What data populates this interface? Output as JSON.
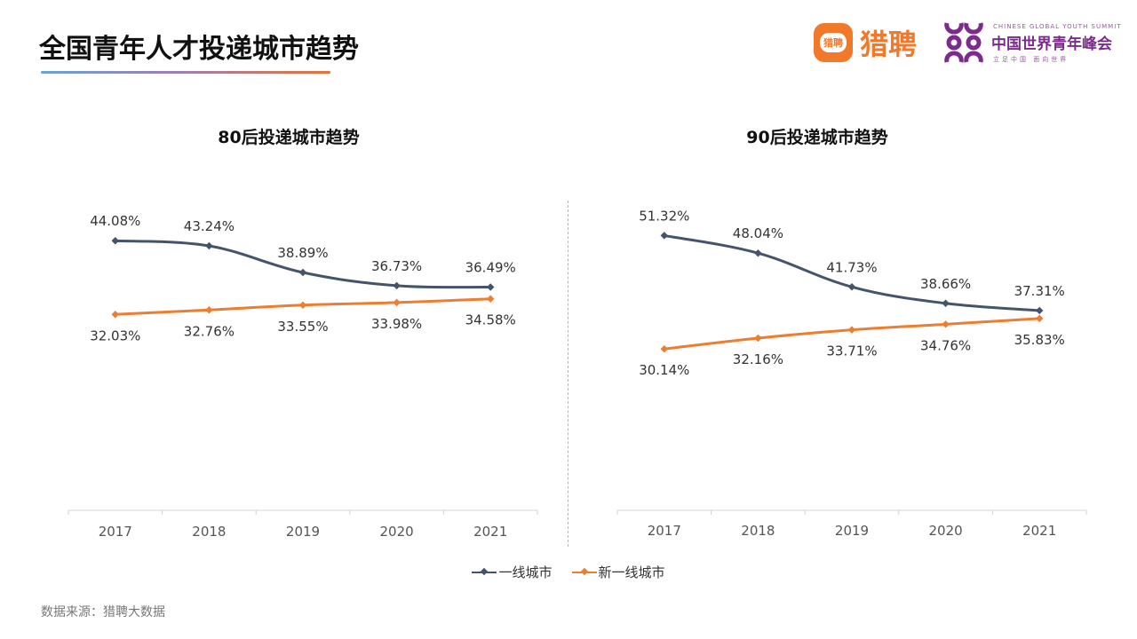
{
  "page": {
    "title": "全国青年人才投递城市趋势",
    "source": "数据来源：猎聘大数据"
  },
  "logos": {
    "liepin": {
      "badge_text": "猎聘",
      "name": "猎聘",
      "color": "#f2782a"
    },
    "summit": {
      "english": "CHINESE GLOBAL YOUTH SUMMIT",
      "chinese": "中国世界青年峰会",
      "slogan": "立足中国  面向世界",
      "color": "#7c2b8c"
    }
  },
  "legend": [
    {
      "name": "一线城市",
      "color": "#44546a"
    },
    {
      "name": "新一线城市",
      "color": "#ed7d31"
    }
  ],
  "chart_data": [
    {
      "type": "line",
      "title": "80后投递城市趋势",
      "categories": [
        "2017",
        "2018",
        "2019",
        "2020",
        "2021"
      ],
      "ylim": [
        0,
        55
      ],
      "grid": false,
      "legend_position": "bottom",
      "series": [
        {
          "name": "一线城市",
          "color": "#44546a",
          "values": [
            44.08,
            43.24,
            38.89,
            36.73,
            36.49
          ],
          "labels": [
            "44.08%",
            "43.24%",
            "38.89%",
            "36.73%",
            "36.49%"
          ]
        },
        {
          "name": "新一线城市",
          "color": "#ed7d31",
          "values": [
            32.03,
            32.76,
            33.55,
            33.98,
            34.58
          ],
          "labels": [
            "32.03%",
            "32.76%",
            "33.55%",
            "33.98%",
            "34.58%"
          ]
        }
      ]
    },
    {
      "type": "line",
      "title": "90后投递城市趋势",
      "categories": [
        "2017",
        "2018",
        "2019",
        "2020",
        "2021"
      ],
      "ylim": [
        0,
        62
      ],
      "grid": false,
      "legend_position": "bottom",
      "series": [
        {
          "name": "一线城市",
          "color": "#44546a",
          "values": [
            51.32,
            48.04,
            41.73,
            38.66,
            37.31
          ],
          "labels": [
            "51.32%",
            "48.04%",
            "41.73%",
            "38.66%",
            "37.31%"
          ]
        },
        {
          "name": "新一线城市",
          "color": "#ed7d31",
          "values": [
            30.14,
            32.16,
            33.71,
            34.76,
            35.83
          ],
          "labels": [
            "30.14%",
            "32.16%",
            "33.71%",
            "34.76%",
            "35.83%"
          ]
        }
      ]
    }
  ]
}
